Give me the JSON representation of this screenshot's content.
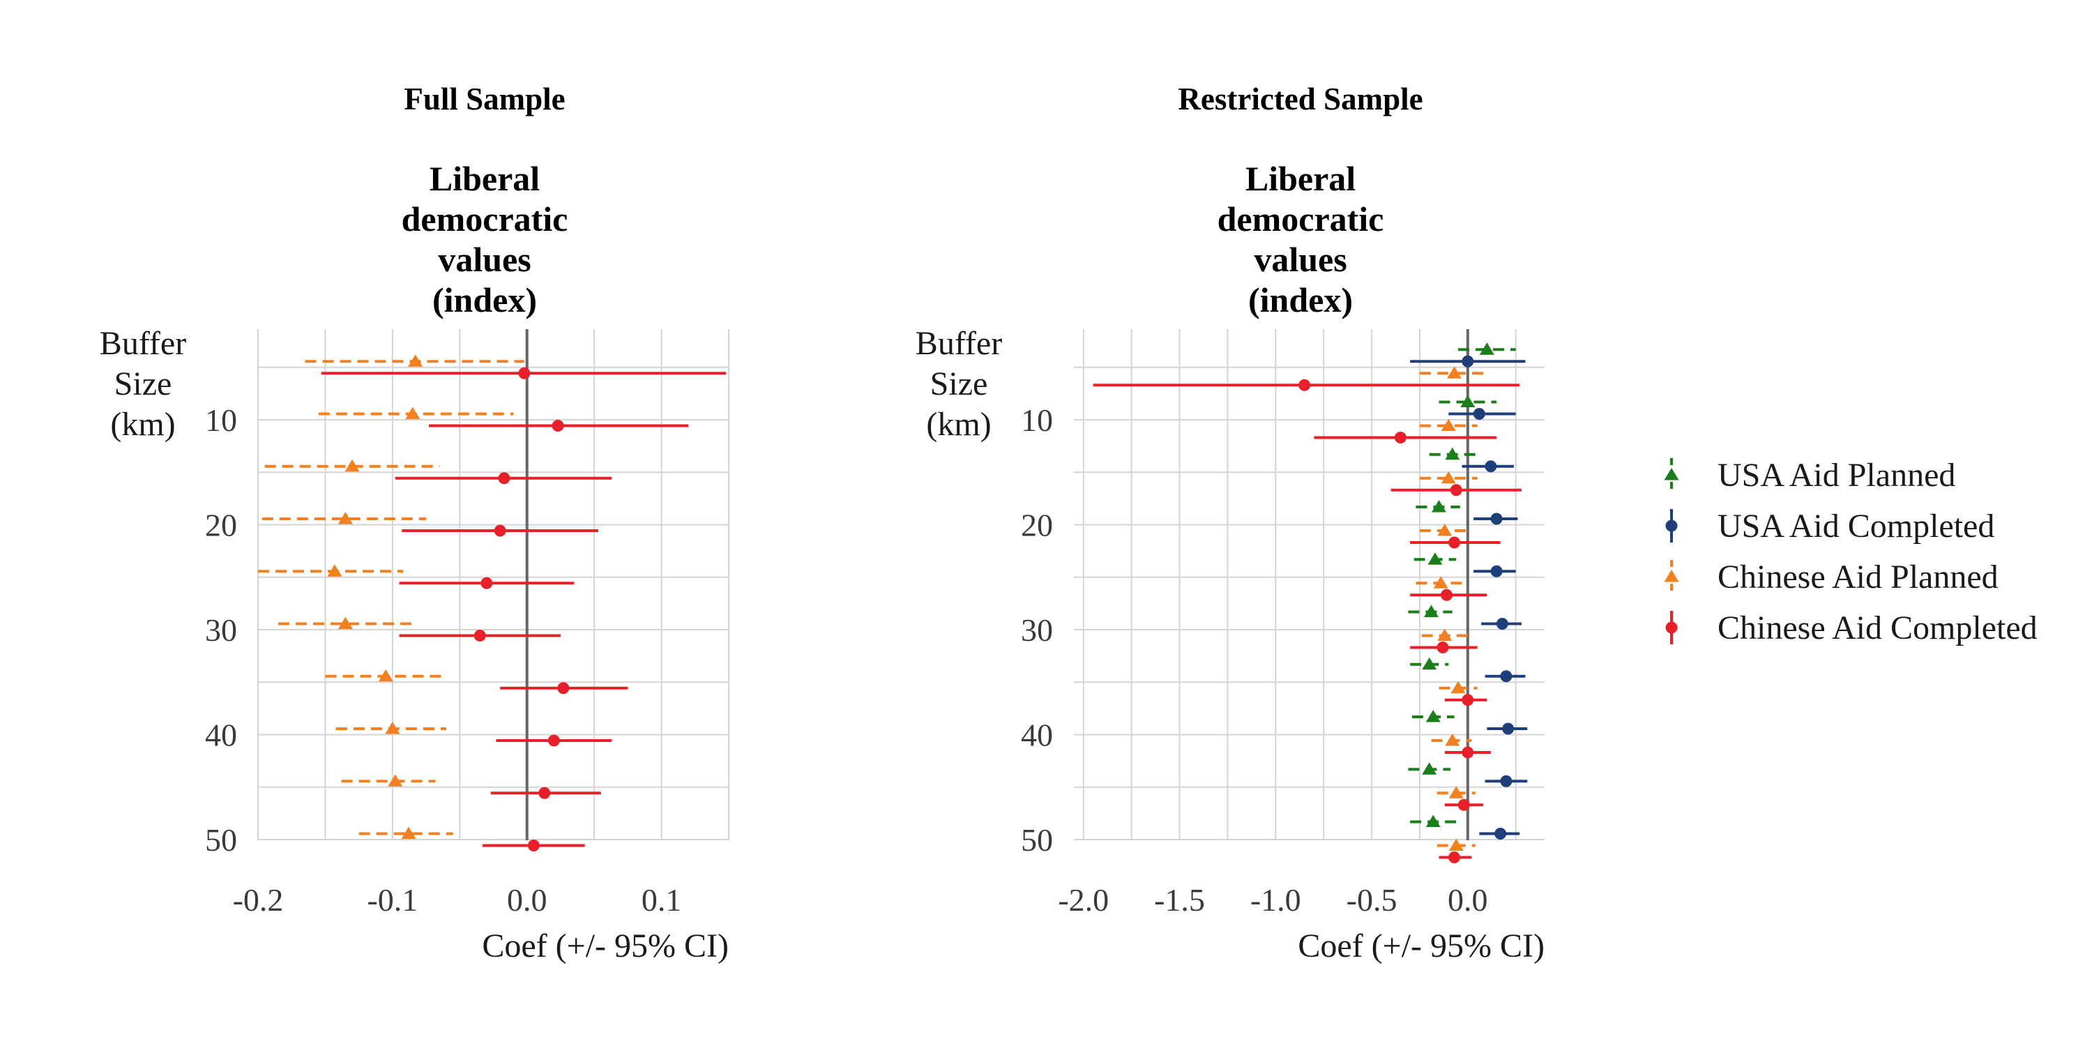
{
  "y_axis_label": [
    "Buffer",
    "Size",
    "(km)"
  ],
  "x_axis_label": "Coef (+/- 95% CI)",
  "legend": {
    "position": "right",
    "items": [
      {
        "series": 0,
        "label": "USA Aid Planned"
      },
      {
        "series": 1,
        "label": "USA Aid Completed"
      },
      {
        "series": 2,
        "label": "Chinese Aid Planned"
      },
      {
        "series": 3,
        "label": "Chinese Aid Completed"
      }
    ]
  },
  "colors": {
    "usa_planned": "#1a7f1a",
    "usa_completed": "#1f3f7a",
    "chinese_planned": "#f28020",
    "chinese_completed": "#e8202a",
    "zero_line": "#666666",
    "grid": "#d4d4d4"
  },
  "chart_data": [
    {
      "type": "dot-and-whisker",
      "title": "Full Sample",
      "outcome": [
        "Liberal",
        "democratic",
        "values",
        "(index)"
      ],
      "xlabel": "Coef (+/- 95% CI)",
      "ylabel": "Buffer Size (km)",
      "xlim": [
        -0.2,
        0.15
      ],
      "xticks": [
        -0.2,
        -0.1,
        0.0,
        0.1
      ],
      "xtick_labels": [
        "-0.2",
        "-0.1",
        "0.0",
        "0.1"
      ],
      "ylim": [
        53,
        2
      ],
      "yticks": [
        10,
        20,
        30,
        40,
        50
      ],
      "grid": true,
      "zero_line": true,
      "categories": [
        5,
        10,
        15,
        20,
        25,
        30,
        35,
        40,
        45,
        50
      ],
      "series": [
        {
          "name": "Chinese Aid Planned",
          "marker": "triangle",
          "line": "dashed",
          "color": "#f28020",
          "estimate": [
            -0.083,
            -0.085,
            -0.13,
            -0.135,
            -0.143,
            -0.135,
            -0.105,
            -0.1,
            -0.098,
            -0.088
          ],
          "ci_low": [
            -0.165,
            -0.155,
            -0.195,
            -0.197,
            -0.2,
            -0.185,
            -0.15,
            -0.142,
            -0.138,
            -0.125
          ],
          "ci_high": [
            -0.002,
            -0.01,
            -0.065,
            -0.075,
            -0.092,
            -0.082,
            -0.06,
            -0.06,
            -0.068,
            -0.055
          ]
        },
        {
          "name": "Chinese Aid Completed",
          "marker": "circle",
          "line": "solid",
          "color": "#e8202a",
          "estimate": [
            -0.002,
            0.023,
            -0.017,
            -0.02,
            -0.03,
            -0.035,
            0.027,
            0.02,
            0.013,
            0.005
          ],
          "ci_low": [
            -0.153,
            -0.073,
            -0.098,
            -0.093,
            -0.095,
            -0.095,
            -0.02,
            -0.023,
            -0.027,
            -0.033
          ],
          "ci_high": [
            0.148,
            0.12,
            0.063,
            0.053,
            0.035,
            0.025,
            0.075,
            0.063,
            0.055,
            0.043
          ]
        }
      ]
    },
    {
      "type": "dot-and-whisker",
      "title": "Restricted Sample",
      "outcome": [
        "Liberal",
        "democratic",
        "values",
        "(index)"
      ],
      "xlabel": "Coef (+/- 95% CI)",
      "ylabel": "Buffer Size (km)",
      "xlim": [
        -2.05,
        0.4
      ],
      "xticks": [
        -2.0,
        -1.5,
        -1.0,
        -0.5,
        0.0
      ],
      "xtick_labels": [
        "-2.0",
        "-1.5",
        "-1.0",
        "-0.5",
        "0.0"
      ],
      "ylim": [
        53,
        2
      ],
      "yticks": [
        10,
        20,
        30,
        40,
        50
      ],
      "grid": true,
      "zero_line": true,
      "categories": [
        5,
        10,
        15,
        20,
        25,
        30,
        35,
        40,
        45,
        50
      ],
      "series": [
        {
          "name": "USA Aid Planned",
          "marker": "triangle",
          "line": "dashed",
          "color": "#1a7f1a",
          "estimate": [
            0.1,
            0.0,
            -0.08,
            -0.15,
            -0.17,
            -0.19,
            -0.2,
            -0.18,
            -0.2,
            -0.18
          ],
          "ci_low": [
            -0.05,
            -0.15,
            -0.2,
            -0.27,
            -0.28,
            -0.31,
            -0.3,
            -0.29,
            -0.31,
            -0.3
          ],
          "ci_high": [
            0.25,
            0.15,
            0.05,
            -0.04,
            -0.06,
            -0.08,
            -0.1,
            -0.07,
            -0.09,
            -0.06
          ]
        },
        {
          "name": "USA Aid Completed",
          "marker": "circle",
          "line": "solid",
          "color": "#1f3f7a",
          "estimate": [
            0.0,
            0.06,
            0.12,
            0.15,
            0.15,
            0.18,
            0.2,
            0.21,
            0.2,
            0.17
          ],
          "ci_low": [
            -0.3,
            -0.1,
            -0.03,
            0.03,
            0.03,
            0.07,
            0.09,
            0.1,
            0.09,
            0.06
          ],
          "ci_high": [
            0.3,
            0.25,
            0.24,
            0.26,
            0.25,
            0.28,
            0.3,
            0.31,
            0.31,
            0.27
          ]
        },
        {
          "name": "Chinese Aid Planned",
          "marker": "triangle",
          "line": "dashed",
          "color": "#f28020",
          "estimate": [
            -0.07,
            -0.1,
            -0.1,
            -0.12,
            -0.14,
            -0.12,
            -0.05,
            -0.08,
            -0.06,
            -0.06
          ],
          "ci_low": [
            -0.25,
            -0.25,
            -0.25,
            -0.25,
            -0.27,
            -0.24,
            -0.15,
            -0.19,
            -0.16,
            -0.16
          ],
          "ci_high": [
            0.1,
            0.05,
            0.05,
            0.0,
            -0.02,
            0.0,
            0.05,
            0.02,
            0.04,
            0.04
          ]
        },
        {
          "name": "Chinese Aid Completed",
          "marker": "circle",
          "line": "solid",
          "color": "#e8202a",
          "estimate": [
            -0.85,
            -0.35,
            -0.06,
            -0.07,
            -0.11,
            -0.13,
            0.0,
            0.0,
            -0.02,
            -0.07
          ],
          "ci_low": [
            -1.95,
            -0.8,
            -0.4,
            -0.3,
            -0.3,
            -0.3,
            -0.12,
            -0.12,
            -0.12,
            -0.15
          ],
          "ci_high": [
            0.27,
            0.15,
            0.28,
            0.17,
            0.1,
            0.05,
            0.1,
            0.12,
            0.08,
            0.02
          ]
        }
      ]
    }
  ]
}
